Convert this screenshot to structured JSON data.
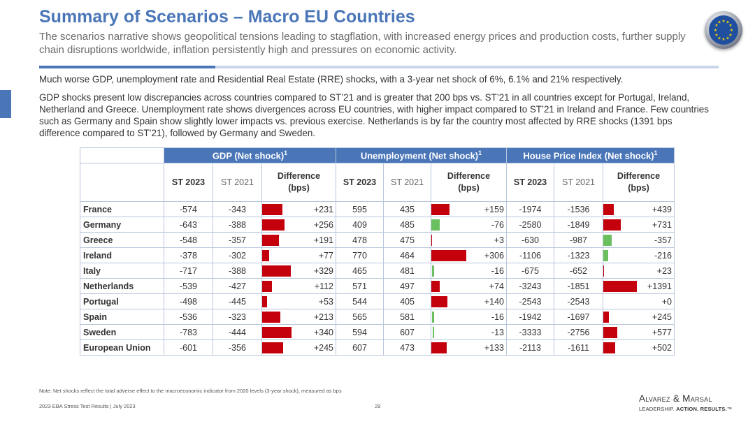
{
  "title": "Summary of Scenarios – Macro EU Countries",
  "subtitle": "The scenarios narrative shows geopolitical tensions leading to stagflation, with increased energy prices and production costs, further supply chain disruptions worldwide, inflation persistently high and pressures on economic activity.",
  "logo_icon": "eu-flag-icon",
  "colors": {
    "accent": "#4a76b8",
    "positive_bar": "#c4000d",
    "negative_bar": "#6abf5e"
  },
  "paragraphs": {
    "p1": "Much worse GDP, unemployment rate and Residential Real Estate (RRE) shocks, with a 3-year net shock of 6%, 6.1% and 21% respectively.",
    "p2": "GDP shocks present low discrepancies across countries compared to ST’21 and is greater that 200 bps vs. ST’21 in all countries except for Portugal, Ireland, Netherland and Greece. Unemployment rate shows divergences across EU countries, with higher impact compared to ST’21 in Ireland and France. Few countries such as Germany and Spain show slightly lower impacts vs. previous exercise. Netherlands is by far the country most affected by RRE shocks (1391 bps difference compared to ST’21), followed by Germany and Sweden."
  },
  "table": {
    "groups": [
      {
        "label": "GDP (Net shock)",
        "sup": "1"
      },
      {
        "label": "Unemployment (Net shock)",
        "sup": "1"
      },
      {
        "label": "House Price Index (Net shock)",
        "sup": "1"
      }
    ],
    "sub": {
      "st2023": "ST 2023",
      "st2021": "ST 2021",
      "diff1": "Difference",
      "diff2": "(bps)"
    },
    "rows": [
      {
        "name": "France",
        "gdp": [
          "-574",
          "-343",
          "+231"
        ],
        "unemp": [
          "595",
          "435",
          "+159"
        ],
        "hpi": [
          "-1974",
          "-1536",
          "+439"
        ]
      },
      {
        "name": "Germany",
        "gdp": [
          "-643",
          "-388",
          "+256"
        ],
        "unemp": [
          "409",
          "485",
          "-76"
        ],
        "hpi": [
          "-2580",
          "-1849",
          "+731"
        ]
      },
      {
        "name": "Greece",
        "gdp": [
          "-548",
          "-357",
          "+191"
        ],
        "unemp": [
          "478",
          "475",
          "+3"
        ],
        "hpi": [
          "-630",
          "-987",
          "-357"
        ]
      },
      {
        "name": "Ireland",
        "gdp": [
          "-378",
          "-302",
          "+77"
        ],
        "unemp": [
          "770",
          "464",
          "+306"
        ],
        "hpi": [
          "-1106",
          "-1323",
          "-216"
        ]
      },
      {
        "name": "Italy",
        "gdp": [
          "-717",
          "-388",
          "+329"
        ],
        "unemp": [
          "465",
          "481",
          "-16"
        ],
        "hpi": [
          "-675",
          "-652",
          "+23"
        ]
      },
      {
        "name": "Netherlands",
        "gdp": [
          "-539",
          "-427",
          "+112"
        ],
        "unemp": [
          "571",
          "497",
          "+74"
        ],
        "hpi": [
          "-3243",
          "-1851",
          "+1391"
        ]
      },
      {
        "name": "Portugal",
        "gdp": [
          "-498",
          "-445",
          "+53"
        ],
        "unemp": [
          "544",
          "405",
          "+140"
        ],
        "hpi": [
          "-2543",
          "-2543",
          "+0"
        ]
      },
      {
        "name": "Spain",
        "gdp": [
          "-536",
          "-323",
          "+213"
        ],
        "unemp": [
          "565",
          "581",
          "-16"
        ],
        "hpi": [
          "-1942",
          "-1697",
          "+245"
        ]
      },
      {
        "name": "Sweden",
        "gdp": [
          "-783",
          "-444",
          "+340"
        ],
        "unemp": [
          "594",
          "607",
          "-13"
        ],
        "hpi": [
          "-3333",
          "-2756",
          "+577"
        ]
      },
      {
        "name": "European Union",
        "gdp": [
          "-601",
          "-356",
          "+245"
        ],
        "unemp": [
          "607",
          "473",
          "+133"
        ],
        "hpi": [
          "-2113",
          "-1611",
          "+502"
        ]
      }
    ]
  },
  "note": "Note: Net shocks reflect the total adverse effect to the macroeconomic indicator from 2020 levels (3-year shock), measured as bps",
  "footer": "2023 EBA Stress Test Results | July 2023",
  "page_number": "29",
  "brand": "Alvarez & Marsal",
  "tagline_plain": "LEADERSHIP. ",
  "tagline_bold": "ACTION. RESULTS.",
  "tagline_mark": "™"
}
